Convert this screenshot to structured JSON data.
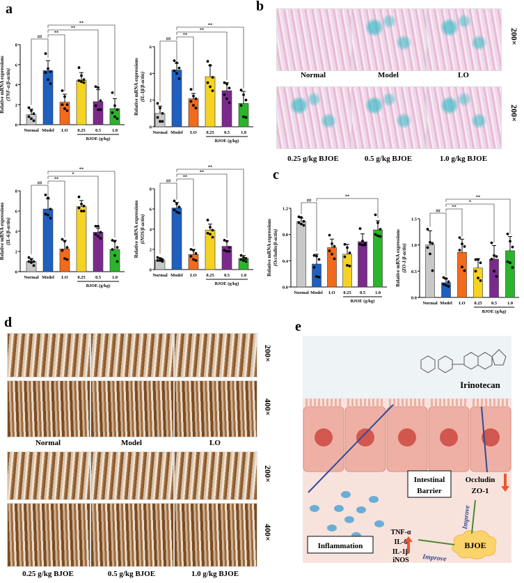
{
  "panels": {
    "a": "a",
    "b": "b",
    "c": "c",
    "d": "d",
    "e": "e"
  },
  "colors": {
    "Normal": "#c8c8c8",
    "Model": "#1f5fbf",
    "LO": "#f26a1b",
    "0.25": "#f5d322",
    "0.5": "#7b2a8c",
    "1.0": "#2cb42c"
  },
  "chart_data": [
    {
      "type": "bar",
      "panel": "a",
      "ylabel": "Relative mRNA expressions",
      "ylabel_sub": "(TNF-α/β-actin)",
      "categories": [
        "Normal",
        "Model",
        "LO",
        "0.25",
        "0.5",
        "1.0"
      ],
      "group_label": "BJOE (g/kg)",
      "ylim": [
        0,
        8
      ],
      "yticks": [
        0,
        2,
        4,
        6,
        8
      ],
      "values": [
        1.0,
        5.4,
        2.25,
        4.45,
        2.3,
        1.6
      ],
      "sd": [
        0.55,
        1.0,
        0.8,
        0.75,
        1.2,
        1.0
      ],
      "points": [
        [
          1.7,
          1.4,
          1.1,
          0.8,
          0.6,
          0.4
        ],
        [
          7.1,
          5.6,
          5.3,
          5.2,
          4.5,
          4.1
        ],
        [
          3.4,
          2.8,
          2.0,
          2.0,
          1.6,
          1.4
        ],
        [
          5.7,
          4.9,
          4.5,
          4.4,
          4.3,
          4.2
        ],
        [
          3.8,
          3.7,
          2.4,
          1.9,
          1.5,
          1.5
        ],
        [
          3.2,
          1.9,
          1.5,
          1.2,
          0.8,
          0.6
        ]
      ],
      "significance": [
        {
          "from": "Normal",
          "to": "Model",
          "label": "##"
        },
        {
          "from": "Model",
          "to": "LO",
          "label": "**"
        },
        {
          "from": "Model",
          "to": "0.5",
          "label": "**"
        },
        {
          "from": "Model",
          "to": "1.0",
          "label": "**"
        }
      ]
    },
    {
      "type": "bar",
      "panel": "a",
      "ylabel": "Relative mRNA expressions",
      "ylabel_sub": "(IL-1β/β-actin)",
      "categories": [
        "Normal",
        "Model",
        "LO",
        "0.25",
        "0.5",
        "1.0"
      ],
      "group_label": "BJOE (g/kg)",
      "ylim": [
        0,
        6
      ],
      "yticks": [
        0,
        2,
        4,
        6
      ],
      "values": [
        1.0,
        4.25,
        2.1,
        3.75,
        2.7,
        1.75
      ],
      "sd": [
        0.55,
        0.5,
        0.4,
        0.85,
        0.6,
        0.9
      ],
      "points": [
        [
          1.75,
          1.4,
          1.0,
          0.7,
          0.4,
          0.4
        ],
        [
          4.95,
          4.8,
          4.4,
          4.2,
          4.0,
          3.6
        ],
        [
          2.8,
          2.3,
          2.1,
          1.9,
          1.6,
          1.4
        ],
        [
          4.9,
          4.6,
          3.7,
          3.3,
          3.0,
          2.7
        ],
        [
          3.3,
          3.2,
          2.9,
          2.4,
          2.1,
          1.8
        ],
        [
          2.75,
          2.4,
          2.0,
          1.6,
          0.75,
          0.7
        ]
      ],
      "significance": [
        {
          "from": "Normal",
          "to": "Model",
          "label": "##"
        },
        {
          "from": "Model",
          "to": "LO",
          "label": "**"
        },
        {
          "from": "Model",
          "to": "0.5",
          "label": "**"
        },
        {
          "from": "Model",
          "to": "1.0",
          "label": "**"
        }
      ]
    },
    {
      "type": "bar",
      "panel": "a",
      "ylabel": "Relative mRNA expressions",
      "ylabel_sub": "(IL-6/β-actin)",
      "categories": [
        "Normal",
        "Model",
        "LO",
        "0.25",
        "0.5",
        "1.0"
      ],
      "group_label": "BJOE (g/kg)",
      "ylim": [
        0,
        8
      ],
      "yticks": [
        0,
        2,
        4,
        6,
        8
      ],
      "values": [
        1.0,
        6.2,
        2.25,
        6.45,
        3.9,
        2.2
      ],
      "sd": [
        0.3,
        1.0,
        0.85,
        0.6,
        0.4,
        0.9
      ],
      "points": [
        [
          1.4,
          1.2,
          1.0,
          1.0,
          0.9,
          0.6
        ],
        [
          7.6,
          7.3,
          6.2,
          5.7,
          5.6,
          5.3
        ],
        [
          3.2,
          3.0,
          2.4,
          2.1,
          1.3,
          1.2
        ],
        [
          7.4,
          6.7,
          6.5,
          6.3,
          6.0,
          6.0
        ],
        [
          4.5,
          4.5,
          3.9,
          3.7,
          3.5,
          3.3
        ],
        [
          3.1,
          3.0,
          2.4,
          2.2,
          1.6,
          1.0
        ]
      ],
      "significance": [
        {
          "from": "Normal",
          "to": "Model",
          "label": "##"
        },
        {
          "from": "Model",
          "to": "LO",
          "label": "**"
        },
        {
          "from": "Model",
          "to": "0.5",
          "label": "*"
        },
        {
          "from": "Model",
          "to": "1.0",
          "label": "**"
        }
      ]
    },
    {
      "type": "bar",
      "panel": "a",
      "ylabel": "Relative mRNA expressions",
      "ylabel_sub": "(iNOS/β-actin)",
      "categories": [
        "Normal",
        "Model",
        "LO",
        "0.25",
        "0.5",
        "1.0"
      ],
      "group_label": "BJOE (g/kg)",
      "ylim": [
        0,
        8
      ],
      "yticks": [
        0,
        2,
        4,
        6,
        8
      ],
      "values": [
        0.95,
        6.1,
        1.5,
        3.9,
        2.3,
        1.1
      ],
      "sd": [
        0.2,
        0.55,
        0.5,
        0.6,
        0.55,
        0.3
      ],
      "points": [
        [
          1.2,
          1.1,
          1.0,
          0.9,
          0.9,
          0.8
        ],
        [
          6.8,
          6.5,
          6.2,
          5.9,
          5.7,
          5.6
        ],
        [
          2.0,
          1.9,
          1.6,
          1.3,
          1.0,
          0.9
        ],
        [
          4.9,
          4.2,
          3.9,
          3.6,
          3.5,
          3.2
        ],
        [
          2.9,
          2.8,
          2.2,
          1.9,
          1.8,
          1.8
        ],
        [
          1.4,
          1.2,
          1.1,
          1.0,
          0.9,
          0.8
        ]
      ],
      "significance": [
        {
          "from": "Normal",
          "to": "Model",
          "label": "##"
        },
        {
          "from": "Model",
          "to": "LO",
          "label": "**"
        },
        {
          "from": "Model",
          "to": "0.5",
          "label": "**"
        },
        {
          "from": "Model",
          "to": "1.0",
          "label": "**"
        }
      ]
    },
    {
      "type": "bar",
      "panel": "c",
      "ylabel": "Relative mRNA expressions",
      "ylabel_sub": "(Occludin/β-actin)",
      "categories": [
        "Normal",
        "Model",
        "LO",
        "0.25",
        "0.5",
        "1.0"
      ],
      "group_label": "BJOE (g/kg)",
      "ylim": [
        0,
        1.2
      ],
      "yticks": [
        0,
        0.4,
        0.8,
        1.2
      ],
      "ytick_labels": [
        "0.0",
        "0.4",
        "0.8",
        "1.2"
      ],
      "values": [
        1.0,
        0.35,
        0.6,
        0.5,
        0.69,
        0.87
      ],
      "sd": [
        0.05,
        0.15,
        0.13,
        0.15,
        0.12,
        0.14
      ],
      "points": [
        [
          1.07,
          1.06,
          1.0,
          0.98,
          0.96,
          0.94
        ],
        [
          0.48,
          0.47,
          0.42,
          0.3,
          0.16,
          0.15
        ],
        [
          0.79,
          0.66,
          0.62,
          0.55,
          0.5,
          0.43
        ],
        [
          0.65,
          0.6,
          0.52,
          0.46,
          0.33,
          0.32
        ],
        [
          0.89,
          0.7,
          0.66,
          0.65,
          0.64,
          0.64
        ],
        [
          1.1,
          0.98,
          0.88,
          0.8,
          0.78,
          0.77
        ]
      ],
      "significance": [
        {
          "from": "Normal",
          "to": "Model",
          "label": "##"
        },
        {
          "from": "Model",
          "to": "1.0",
          "label": "**"
        }
      ]
    },
    {
      "type": "bar",
      "panel": "c",
      "ylabel": "Relative mRNA expressions",
      "ylabel_sub": "(ZO-1/β-actin)",
      "categories": [
        "Normal",
        "Model",
        "LO",
        "0.25",
        "0.5",
        "1.0"
      ],
      "group_label": "BJOE (g/kg)",
      "ylim": [
        0,
        1.5
      ],
      "yticks": [
        0,
        0.5,
        1.0,
        1.5
      ],
      "ytick_labels": [
        "0.0",
        "0.5",
        "1.0",
        "1.5"
      ],
      "values": [
        1.0,
        0.28,
        0.86,
        0.56,
        0.73,
        0.89
      ],
      "sd": [
        0.27,
        0.07,
        0.25,
        0.18,
        0.26,
        0.27
      ],
      "points": [
        [
          1.3,
          1.05,
          1.03,
          0.95,
          0.83,
          0.51
        ],
        [
          0.38,
          0.36,
          0.3,
          0.25,
          0.23,
          0.21
        ],
        [
          1.14,
          1.02,
          0.97,
          0.9,
          0.58,
          0.51
        ],
        [
          0.72,
          0.72,
          0.66,
          0.5,
          0.37,
          0.32
        ],
        [
          1.04,
          0.8,
          0.78,
          0.73,
          0.5,
          0.4
        ],
        [
          1.21,
          1.07,
          0.96,
          0.68,
          0.66,
          0.57
        ]
      ],
      "significance": [
        {
          "from": "Normal",
          "to": "Model",
          "label": "##"
        },
        {
          "from": "Model",
          "to": "LO",
          "label": "**"
        },
        {
          "from": "Model",
          "to": "0.5",
          "label": "*"
        },
        {
          "from": "Model",
          "to": "1.0",
          "label": "**"
        }
      ]
    }
  ],
  "b": {
    "row1": [
      "Normal",
      "Model",
      "LO"
    ],
    "row2": [
      "0.25 g/kg BJOE",
      "0.5 g/kg BJOE",
      "1.0 g/kg BJOE"
    ],
    "mag": "200×"
  },
  "d": {
    "row1": [
      "Normal",
      "Model",
      "LO"
    ],
    "row2": [
      "0.25 g/kg BJOE",
      "0.5 g/kg BJOE",
      "1.0 g/kg BJOE"
    ],
    "mag_low": "200×",
    "mag_high": "400×"
  },
  "e": {
    "drug": "Irinotecan",
    "barrier": [
      "Intestinal",
      "Barrier"
    ],
    "proteins": [
      "Occludin",
      "ZO-1"
    ],
    "inflammation": "Inflammation",
    "cytokines": [
      "TNF-α",
      "IL-6",
      "IL-1β",
      "iNOS"
    ],
    "treatment": "BJOE",
    "improve": "Improve",
    "up_color": "#f0542a",
    "arrow_blue": "#2f4a9a",
    "arrow_green": "#4a8a2a"
  }
}
